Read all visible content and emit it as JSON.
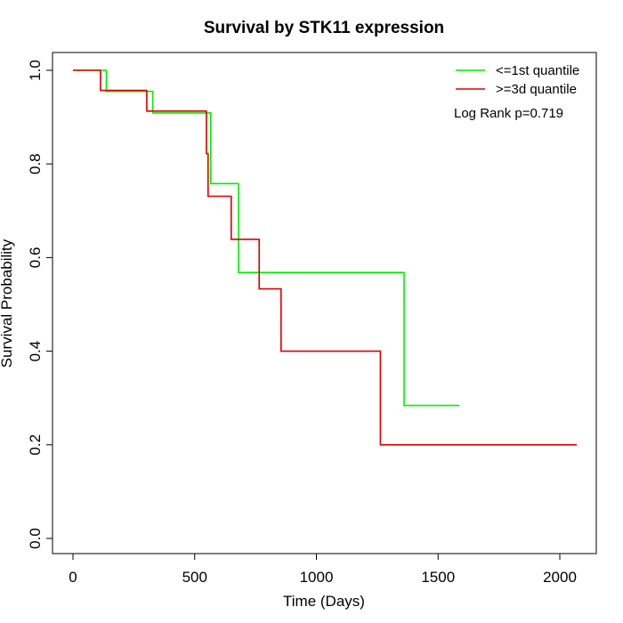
{
  "chart_data": {
    "type": "line",
    "title": "Survival by STK11 expression",
    "xlabel": "Time (Days)",
    "ylabel": "Survival Probability",
    "xlim": [
      0,
      2070
    ],
    "ylim": [
      0,
      1
    ],
    "x_ticks": [
      0,
      500,
      1000,
      1500,
      2000
    ],
    "x_tick_labels": [
      "0",
      "500",
      "1000",
      "1500",
      "2000"
    ],
    "y_ticks": [
      0,
      0.2,
      0.4,
      0.6,
      0.8,
      1
    ],
    "y_tick_labels": [
      "0.0",
      "0.2",
      "0.4",
      "0.6",
      "0.8",
      "1.0"
    ],
    "grid": false,
    "legend_position": "top-right",
    "annotation": "Log Rank p=0.719",
    "series": [
      {
        "name": "<=1st quantile",
        "color": "#00ee00",
        "step_points": [
          [
            0,
            1.0
          ],
          [
            137,
            1.0
          ],
          [
            137,
            0.955
          ],
          [
            328,
            0.955
          ],
          [
            328,
            0.909
          ],
          [
            566,
            0.909
          ],
          [
            566,
            0.758
          ],
          [
            680,
            0.758
          ],
          [
            680,
            0.568
          ],
          [
            1360,
            0.568
          ],
          [
            1360,
            0.284
          ],
          [
            1588,
            0.284
          ]
        ]
      },
      {
        "name": ">=3d quantile",
        "color": "#dd0000",
        "step_points": [
          [
            0,
            1.0
          ],
          [
            113,
            1.0
          ],
          [
            113,
            0.957
          ],
          [
            303,
            0.957
          ],
          [
            303,
            0.913
          ],
          [
            548,
            0.913
          ],
          [
            548,
            0.822
          ],
          [
            555,
            0.822
          ],
          [
            555,
            0.731
          ],
          [
            650,
            0.731
          ],
          [
            650,
            0.639
          ],
          [
            765,
            0.639
          ],
          [
            765,
            0.533
          ],
          [
            855,
            0.533
          ],
          [
            855,
            0.4
          ],
          [
            1263,
            0.4
          ],
          [
            1263,
            0.2
          ],
          [
            2070,
            0.2
          ]
        ]
      }
    ]
  }
}
